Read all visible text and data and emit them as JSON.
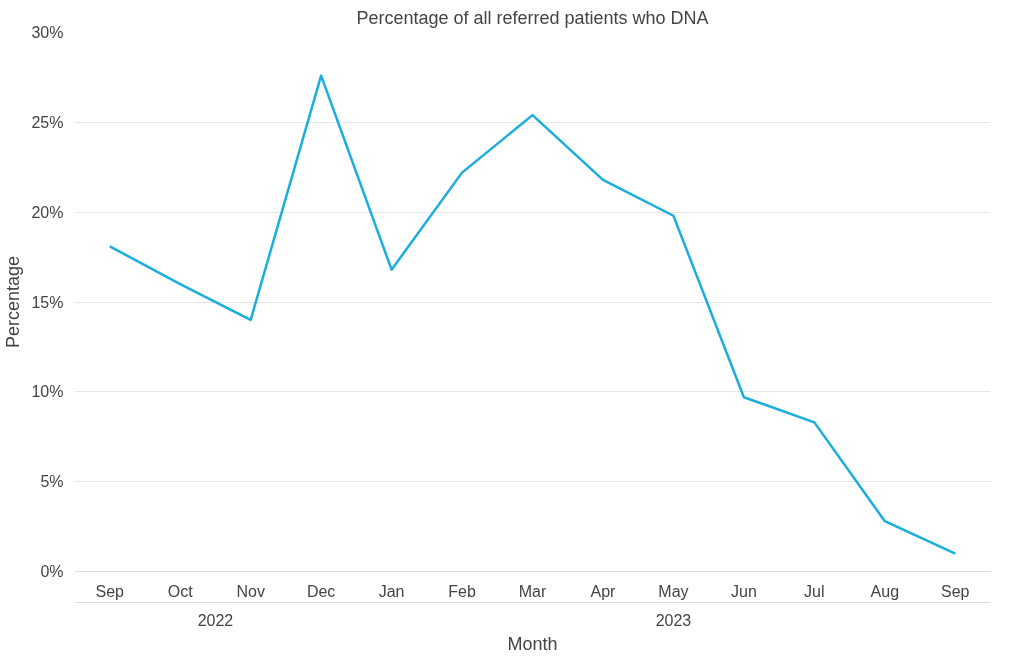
{
  "chart_data": {
    "type": "line",
    "title": "Percentage of all referred patients who DNA",
    "xlabel": "Month",
    "ylabel": "Percentage",
    "categories": [
      "Sep",
      "Oct",
      "Nov",
      "Dec",
      "Jan",
      "Feb",
      "Mar",
      "Apr",
      "May",
      "Jun",
      "Jul",
      "Aug",
      "Sep"
    ],
    "series": [
      {
        "color": "#1aaedc",
        "values": [
          18.1,
          16.0,
          14.0,
          27.6,
          16.8,
          22.2,
          25.4,
          21.8,
          19.8,
          9.7,
          8.3,
          2.8,
          1.0
        ]
      }
    ],
    "annotations": [
      "2022",
      "2023"
    ],
    "ylim": [
      0,
      30
    ],
    "yticks": [
      {
        "value": 0,
        "label": "0%"
      },
      {
        "value": 5,
        "label": "5%"
      },
      {
        "value": 10,
        "label": "10%"
      },
      {
        "value": 15,
        "label": "15%"
      },
      {
        "value": 20,
        "label": "20%"
      },
      {
        "value": 25,
        "label": "25%"
      },
      {
        "value": 30,
        "label": "30%"
      }
    ],
    "grid": "y",
    "marker": "none",
    "line_style": "solid"
  }
}
